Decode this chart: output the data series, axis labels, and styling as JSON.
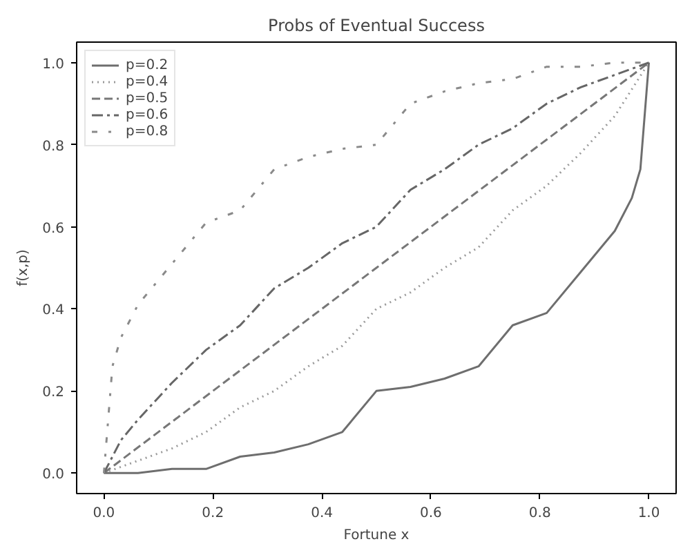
{
  "chart_data": {
    "type": "line",
    "title": "Probs of Eventual Success",
    "xlabel": "Fortune x",
    "ylabel": "f(x,p)",
    "xlim": [
      -0.05,
      1.05
    ],
    "ylim": [
      -0.05,
      1.05
    ],
    "xticks": [
      {
        "value": 0,
        "label": "0.0"
      },
      {
        "value": 0.2,
        "label": "0.2"
      },
      {
        "value": 0.4,
        "label": "0.4"
      },
      {
        "value": 0.6,
        "label": "0.6"
      },
      {
        "value": 0.8,
        "label": "0.8"
      },
      {
        "value": 1,
        "label": "1.0"
      }
    ],
    "yticks": [
      {
        "value": 0,
        "label": "0.0"
      },
      {
        "value": 0.2,
        "label": "0.2"
      },
      {
        "value": 0.4,
        "label": "0.4"
      },
      {
        "value": 0.6,
        "label": "0.6"
      },
      {
        "value": 0.8,
        "label": "0.8"
      },
      {
        "value": 1,
        "label": "1.0"
      }
    ],
    "grid": false,
    "legend": "top left",
    "marker": "none",
    "series": [
      {
        "name": "p=0.2",
        "color": "#6e6e6e",
        "line_style": "solid",
        "x": [
          0,
          0.0625,
          0.125,
          0.1875,
          0.25,
          0.3125,
          0.375,
          0.4375,
          0.5,
          0.5625,
          0.625,
          0.6875,
          0.75,
          0.8125,
          0.875,
          0.9375,
          0.96875,
          0.984375,
          1
        ],
        "values": [
          0,
          0,
          0.01,
          0.01,
          0.04,
          0.05,
          0.07,
          0.1,
          0.2,
          0.21,
          0.23,
          0.26,
          0.36,
          0.39,
          0.49,
          0.59,
          0.67,
          0.74,
          1
        ]
      },
      {
        "name": "p=0.4",
        "color": "#9a9a9a",
        "line_style": "dotted",
        "x": [
          0,
          0.0625,
          0.125,
          0.1875,
          0.25,
          0.3125,
          0.375,
          0.4375,
          0.5,
          0.5625,
          0.625,
          0.6875,
          0.75,
          0.8125,
          0.875,
          0.9375,
          1
        ],
        "values": [
          0,
          0.03,
          0.06,
          0.1,
          0.16,
          0.2,
          0.26,
          0.31,
          0.4,
          0.44,
          0.5,
          0.55,
          0.64,
          0.7,
          0.78,
          0.87,
          1
        ]
      },
      {
        "name": "p=0.5",
        "color": "#777777",
        "line_style": "dashed",
        "x": [
          0,
          0.25,
          0.5,
          0.75,
          1
        ],
        "values": [
          0,
          0.25,
          0.5,
          0.75,
          1
        ]
      },
      {
        "name": "p=0.6",
        "color": "#666666",
        "line_style": "dashdot",
        "x": [
          0,
          0.03125,
          0.0625,
          0.125,
          0.1875,
          0.25,
          0.3125,
          0.375,
          0.4375,
          0.5,
          0.5625,
          0.625,
          0.6875,
          0.75,
          0.8125,
          0.875,
          0.9375,
          1
        ],
        "values": [
          0,
          0.08,
          0.13,
          0.22,
          0.3,
          0.36,
          0.45,
          0.5,
          0.56,
          0.6,
          0.69,
          0.74,
          0.8,
          0.84,
          0.9,
          0.94,
          0.97,
          1
        ]
      },
      {
        "name": "p=0.8",
        "color": "#8a8a8a",
        "line_style": "loosely dashdot",
        "x": [
          0,
          0.015625,
          0.03125,
          0.0625,
          0.125,
          0.1875,
          0.25,
          0.3125,
          0.375,
          0.4375,
          0.5,
          0.5625,
          0.625,
          0.6875,
          0.75,
          0.8125,
          0.875,
          0.9375,
          1
        ],
        "values": [
          0,
          0.26,
          0.33,
          0.41,
          0.51,
          0.61,
          0.64,
          0.74,
          0.77,
          0.79,
          0.8,
          0.9,
          0.93,
          0.95,
          0.96,
          0.99,
          0.99,
          1,
          1
        ]
      }
    ]
  }
}
